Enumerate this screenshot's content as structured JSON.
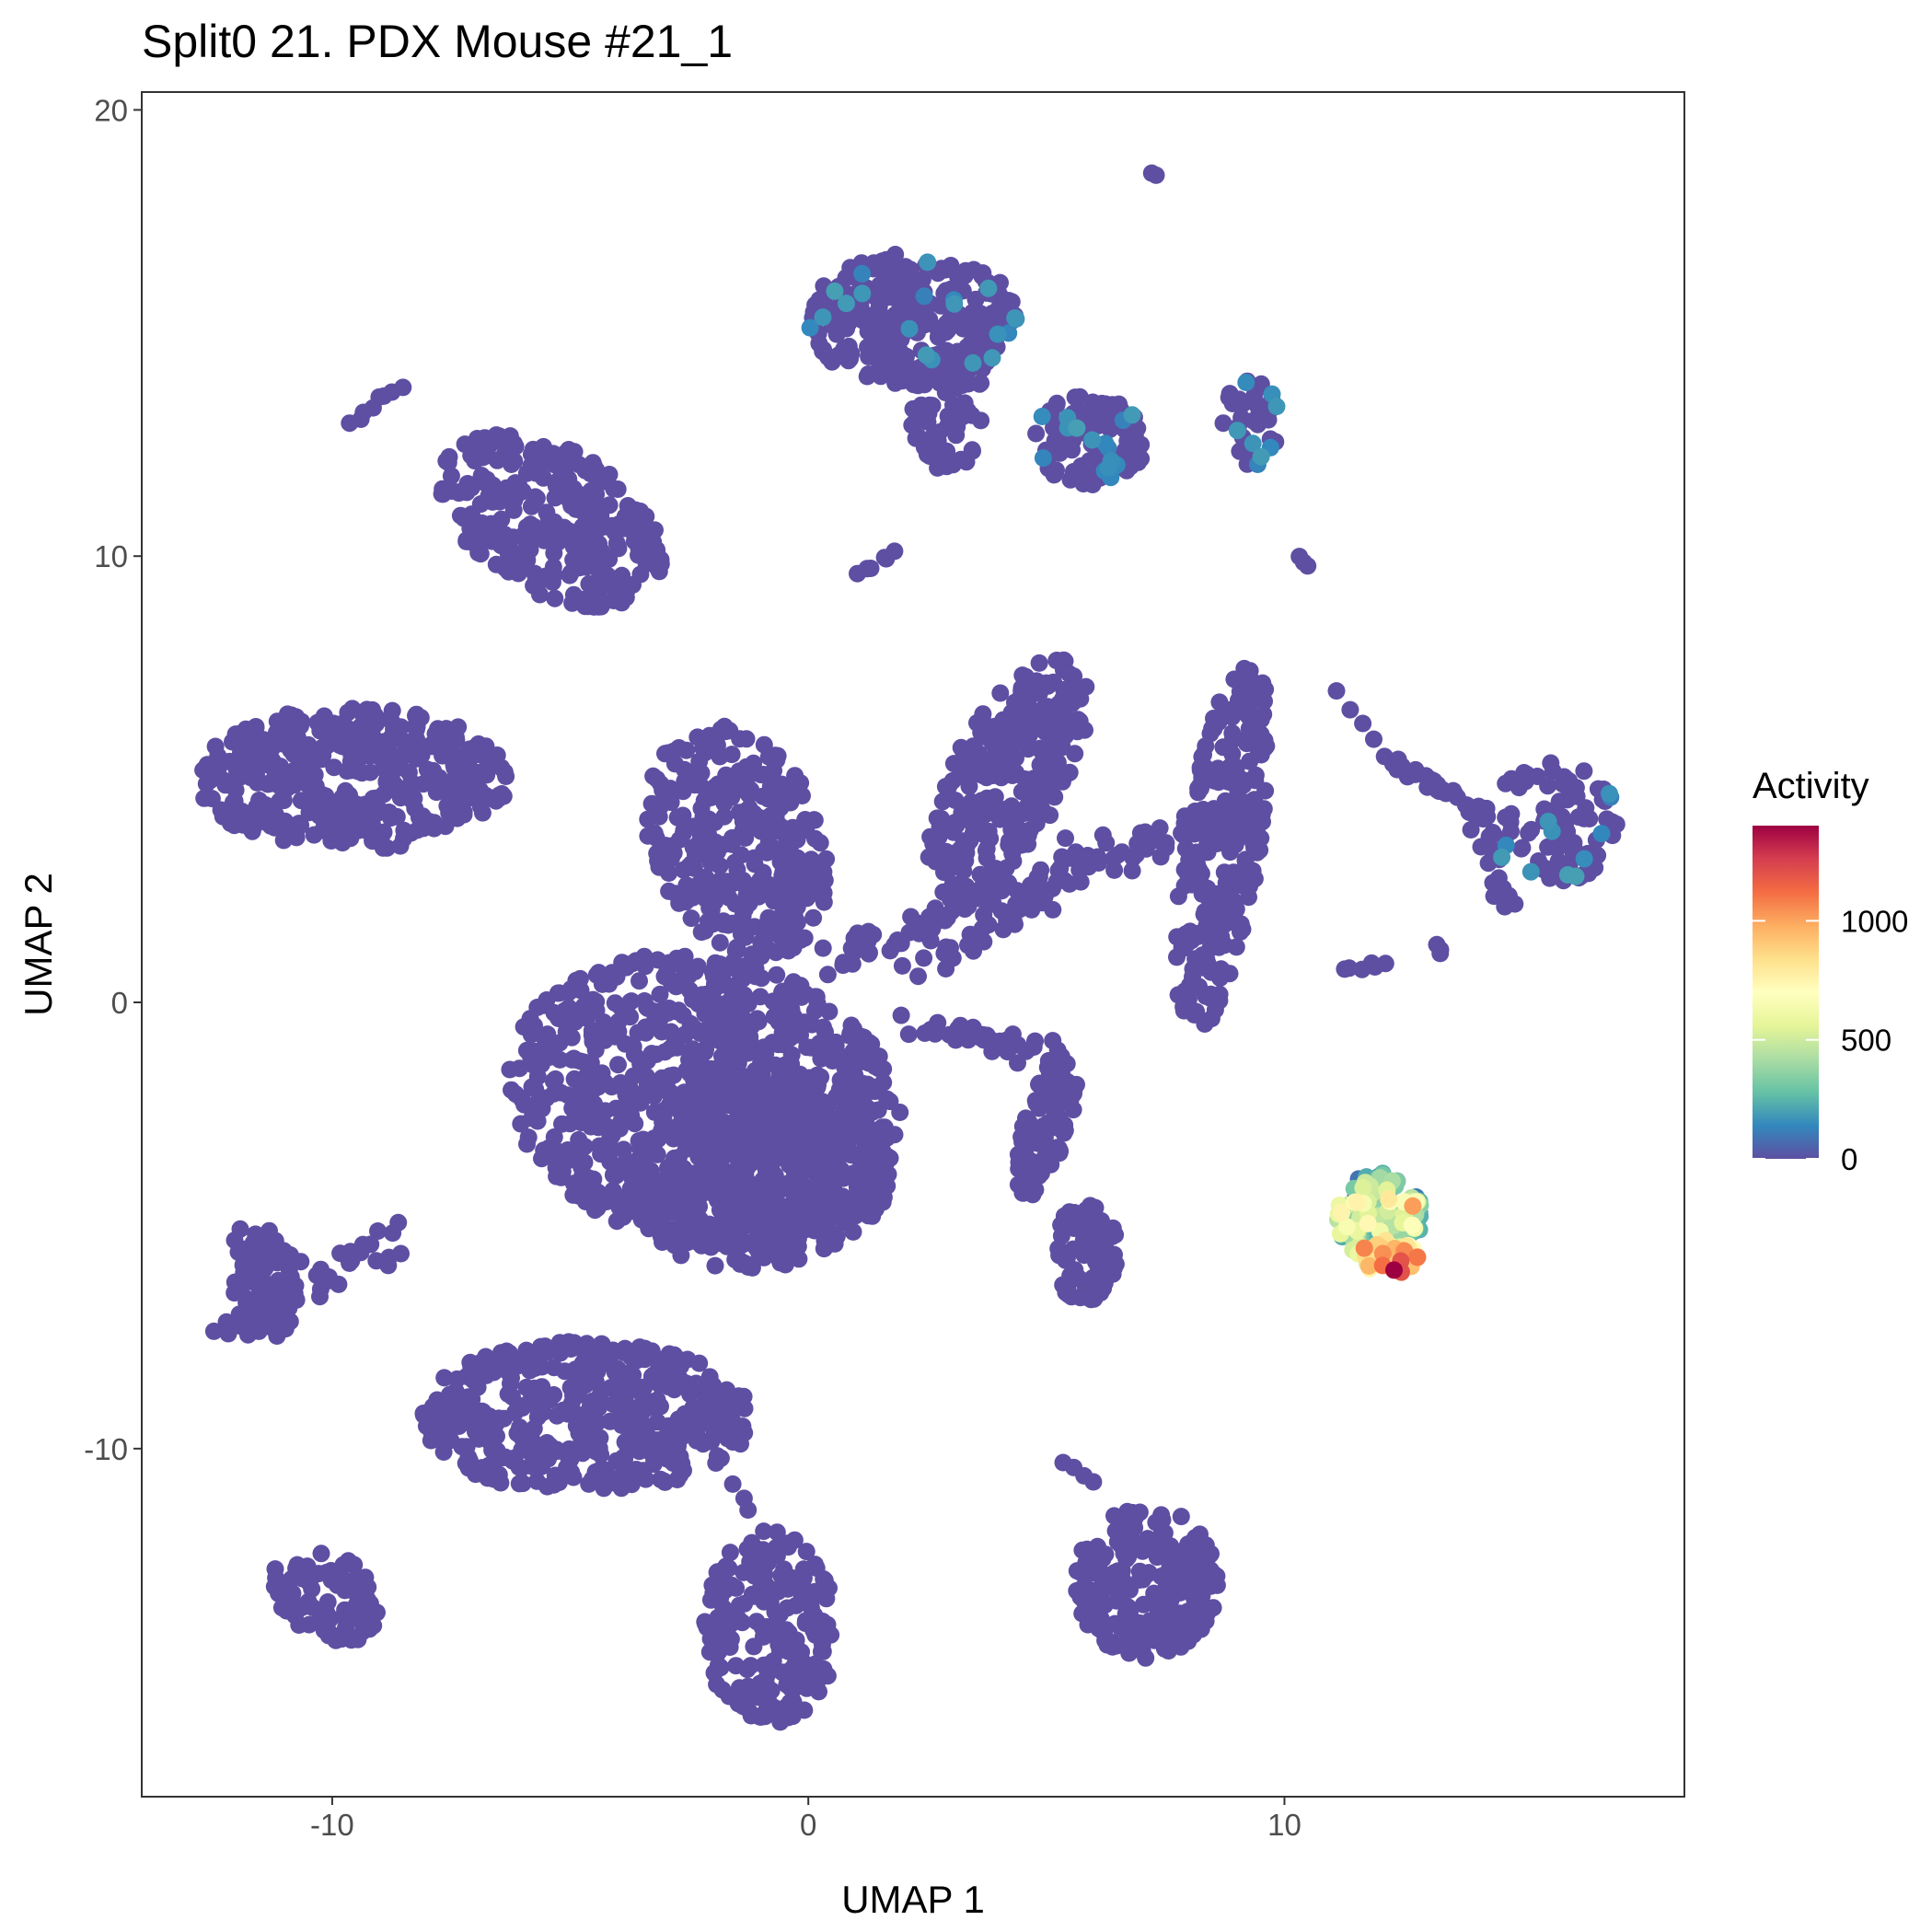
{
  "chart_data": {
    "type": "scatter",
    "title": "Split0 21. PDX Mouse #21_1",
    "xlabel": "UMAP 1",
    "ylabel": "UMAP 2",
    "xlim": [
      -14,
      18.4
    ],
    "ylim": [
      -17.8,
      20.4
    ],
    "xticks": [
      -10,
      0,
      10
    ],
    "xtick_labels": [
      "-10",
      "0",
      "10"
    ],
    "yticks": [
      20,
      10,
      0,
      -10
    ],
    "ytick_labels": [
      "20",
      "10",
      "0",
      "-10"
    ],
    "grid": false,
    "colorbar": {
      "title": "Activity",
      "min": 0,
      "max": 1400,
      "ticks": [
        0,
        500,
        1000
      ],
      "tick_labels": [
        "0",
        "500",
        "1000"
      ],
      "palette": [
        "#5e4fa2",
        "#3288bd",
        "#66c2a5",
        "#abdda4",
        "#e6f598",
        "#ffffbf",
        "#fee08b",
        "#fdae61",
        "#f46d43",
        "#d53e4f",
        "#9e0142"
      ],
      "placement": "right"
    },
    "point_color_default": "#5e4fa2",
    "clusters": [
      {
        "kind": "ellipse",
        "cx": -2.2,
        "cy": -2.2,
        "rx": 4.2,
        "ry": 3.2,
        "rot": -15,
        "n": 900,
        "activity": 0
      },
      {
        "kind": "ellipse",
        "cx": -1.0,
        "cy": -3.8,
        "rx": 2.8,
        "ry": 2.2,
        "rot": 10,
        "n": 450,
        "activity": 0
      },
      {
        "kind": "ellipse",
        "cx": -1.5,
        "cy": 3.6,
        "rx": 1.8,
        "ry": 2.7,
        "rot": 20,
        "n": 300,
        "activity": 0
      },
      {
        "kind": "ellipse",
        "cx": -9.6,
        "cy": 5.0,
        "rx": 3.3,
        "ry": 1.6,
        "rot": 0,
        "n": 400,
        "activity": 0
      },
      {
        "kind": "ellipse",
        "cx": -5.4,
        "cy": 10.8,
        "rx": 2.6,
        "ry": 1.6,
        "rot": -35,
        "n": 300,
        "activity": 0
      },
      {
        "kind": "ellipse",
        "cx": 2.2,
        "cy": 15.3,
        "rx": 2.2,
        "ry": 1.5,
        "rot": 0,
        "n": 280,
        "activity": 0,
        "highlight": 0.08
      },
      {
        "kind": "ellipse",
        "cx": 2.9,
        "cy": 13.3,
        "rx": 0.8,
        "ry": 1.4,
        "rot": 0,
        "n": 80,
        "activity": 0
      },
      {
        "kind": "ellipse",
        "cx": 5.9,
        "cy": 12.6,
        "rx": 1.2,
        "ry": 1.0,
        "rot": 0,
        "n": 120,
        "activity": 0,
        "highlight": 0.08
      },
      {
        "kind": "ellipse",
        "cx": 9.3,
        "cy": 13.0,
        "rx": 0.6,
        "ry": 1.0,
        "rot": 0,
        "n": 40,
        "activity": 0,
        "highlight": 0.15
      },
      {
        "kind": "ellipse",
        "cx": 4.2,
        "cy": 5.0,
        "rx": 1.2,
        "ry": 3.0,
        "rot": -25,
        "n": 260,
        "activity": 0
      },
      {
        "kind": "ellipse",
        "cx": 8.7,
        "cy": 3.5,
        "rx": 0.8,
        "ry": 4.2,
        "rot": -8,
        "n": 260,
        "activity": 0
      },
      {
        "kind": "ellipse",
        "cx": 15.6,
        "cy": 4.0,
        "rx": 1.4,
        "ry": 1.4,
        "rot": 0,
        "n": 100,
        "activity": 0,
        "highlight": 0.1
      },
      {
        "kind": "ellipse",
        "cx": 5.8,
        "cy": -5.6,
        "rx": 0.7,
        "ry": 1.1,
        "rot": 0,
        "n": 90,
        "activity": 0
      },
      {
        "kind": "ellipse",
        "cx": 5.0,
        "cy": -2.8,
        "rx": 0.5,
        "ry": 1.6,
        "rot": -15,
        "n": 90,
        "activity": 0
      },
      {
        "kind": "ellipse",
        "cx": -11.4,
        "cy": -6.4,
        "rx": 0.7,
        "ry": 1.3,
        "rot": 0,
        "n": 80,
        "activity": 0
      },
      {
        "kind": "ellipse",
        "cx": -4.7,
        "cy": -9.3,
        "rx": 3.5,
        "ry": 1.7,
        "rot": 0,
        "n": 450,
        "activity": 0
      },
      {
        "kind": "ellipse",
        "cx": -10.1,
        "cy": -13.3,
        "rx": 1.3,
        "ry": 0.9,
        "rot": -30,
        "n": 90,
        "activity": 0
      },
      {
        "kind": "ellipse",
        "cx": -0.8,
        "cy": -14.0,
        "rx": 1.4,
        "ry": 2.2,
        "rot": 0,
        "n": 220,
        "activity": 0
      },
      {
        "kind": "ellipse",
        "cx": 7.1,
        "cy": -13.0,
        "rx": 1.5,
        "ry": 1.7,
        "rot": 0,
        "n": 220,
        "activity": 0
      },
      {
        "kind": "ellipse",
        "cx": 12.0,
        "cy": -4.8,
        "rx": 0.9,
        "ry": 1.0,
        "rot": 0,
        "n": 160,
        "activity": 350,
        "spread": 220
      },
      {
        "kind": "ellipse",
        "cx": 12.2,
        "cy": -5.7,
        "rx": 0.6,
        "ry": 0.4,
        "rot": 0,
        "n": 45,
        "activity": 850,
        "spread": 250
      },
      {
        "kind": "line",
        "x1": 0.5,
        "y1": 1.0,
        "x2": 9.0,
        "y2": 4.3,
        "n": 120,
        "jitter": 0.25,
        "activity": 0
      },
      {
        "kind": "line",
        "x1": 2.3,
        "y1": -0.5,
        "x2": 5.5,
        "y2": -1.2,
        "n": 40,
        "jitter": 0.15,
        "activity": 0
      },
      {
        "kind": "line",
        "x1": -0.5,
        "y1": 1.2,
        "x2": -0.3,
        "y2": 3.4,
        "n": 25,
        "jitter": 0.15,
        "activity": 0
      },
      {
        "kind": "line",
        "x1": 2.5,
        "y1": 0.7,
        "x2": 5.0,
        "y2": 2.7,
        "n": 30,
        "jitter": 0.2,
        "activity": 0
      },
      {
        "kind": "line",
        "x1": 12.2,
        "y1": 5.5,
        "x2": 14.3,
        "y2": 4.1,
        "n": 35,
        "jitter": 0.08,
        "activity": 0
      },
      {
        "kind": "line",
        "x1": 14.2,
        "y1": 3.8,
        "x2": 14.7,
        "y2": 2.1,
        "n": 15,
        "jitter": 0.1,
        "activity": 0
      },
      {
        "kind": "line",
        "x1": -12.2,
        "y1": -7.3,
        "x2": -8.6,
        "y2": -5.3,
        "n": 45,
        "jitter": 0.2,
        "activity": 0
      },
      {
        "kind": "line",
        "x1": -12.0,
        "y1": -5.1,
        "x2": -11.5,
        "y2": -7.0,
        "n": 12,
        "jitter": 0.1,
        "activity": 0
      },
      {
        "kind": "line",
        "x1": -9.6,
        "y1": 13.0,
        "x2": -8.6,
        "y2": 13.8,
        "n": 8,
        "jitter": 0.05,
        "activity": 0
      },
      {
        "kind": "line",
        "x1": 1.1,
        "y1": 9.6,
        "x2": 1.8,
        "y2": 10.1,
        "n": 6,
        "jitter": 0.05,
        "activity": 0
      },
      {
        "kind": "line",
        "x1": 10.3,
        "y1": 10.0,
        "x2": 10.5,
        "y2": 9.8,
        "n": 3,
        "jitter": 0.02,
        "activity": 0
      },
      {
        "kind": "line",
        "x1": 11.1,
        "y1": 7.0,
        "x2": 11.9,
        "y2": 5.8,
        "n": 4,
        "jitter": 0.05,
        "activity": 0
      },
      {
        "kind": "line",
        "x1": -1.6,
        "y1": -10.8,
        "x2": -1.2,
        "y2": -11.4,
        "n": 3,
        "jitter": 0.05,
        "activity": 0
      },
      {
        "kind": "line",
        "x1": 11.3,
        "y1": 0.7,
        "x2": 12.0,
        "y2": 0.7,
        "n": 6,
        "jitter": 0.08,
        "activity": 0
      },
      {
        "kind": "line",
        "x1": 13.2,
        "y1": 1.3,
        "x2": 13.3,
        "y2": 1.1,
        "n": 3,
        "jitter": 0.03,
        "activity": 0
      },
      {
        "kind": "line",
        "x1": 7.2,
        "y1": 18.6,
        "x2": 7.3,
        "y2": 18.5,
        "n": 2,
        "jitter": 0.02,
        "activity": 0
      },
      {
        "kind": "line",
        "x1": 5.4,
        "y1": -10.3,
        "x2": 5.9,
        "y2": -10.8,
        "n": 4,
        "jitter": 0.05,
        "activity": 0
      },
      {
        "kind": "point",
        "x": 12.3,
        "y": -6.0,
        "activity": 1400
      }
    ]
  }
}
